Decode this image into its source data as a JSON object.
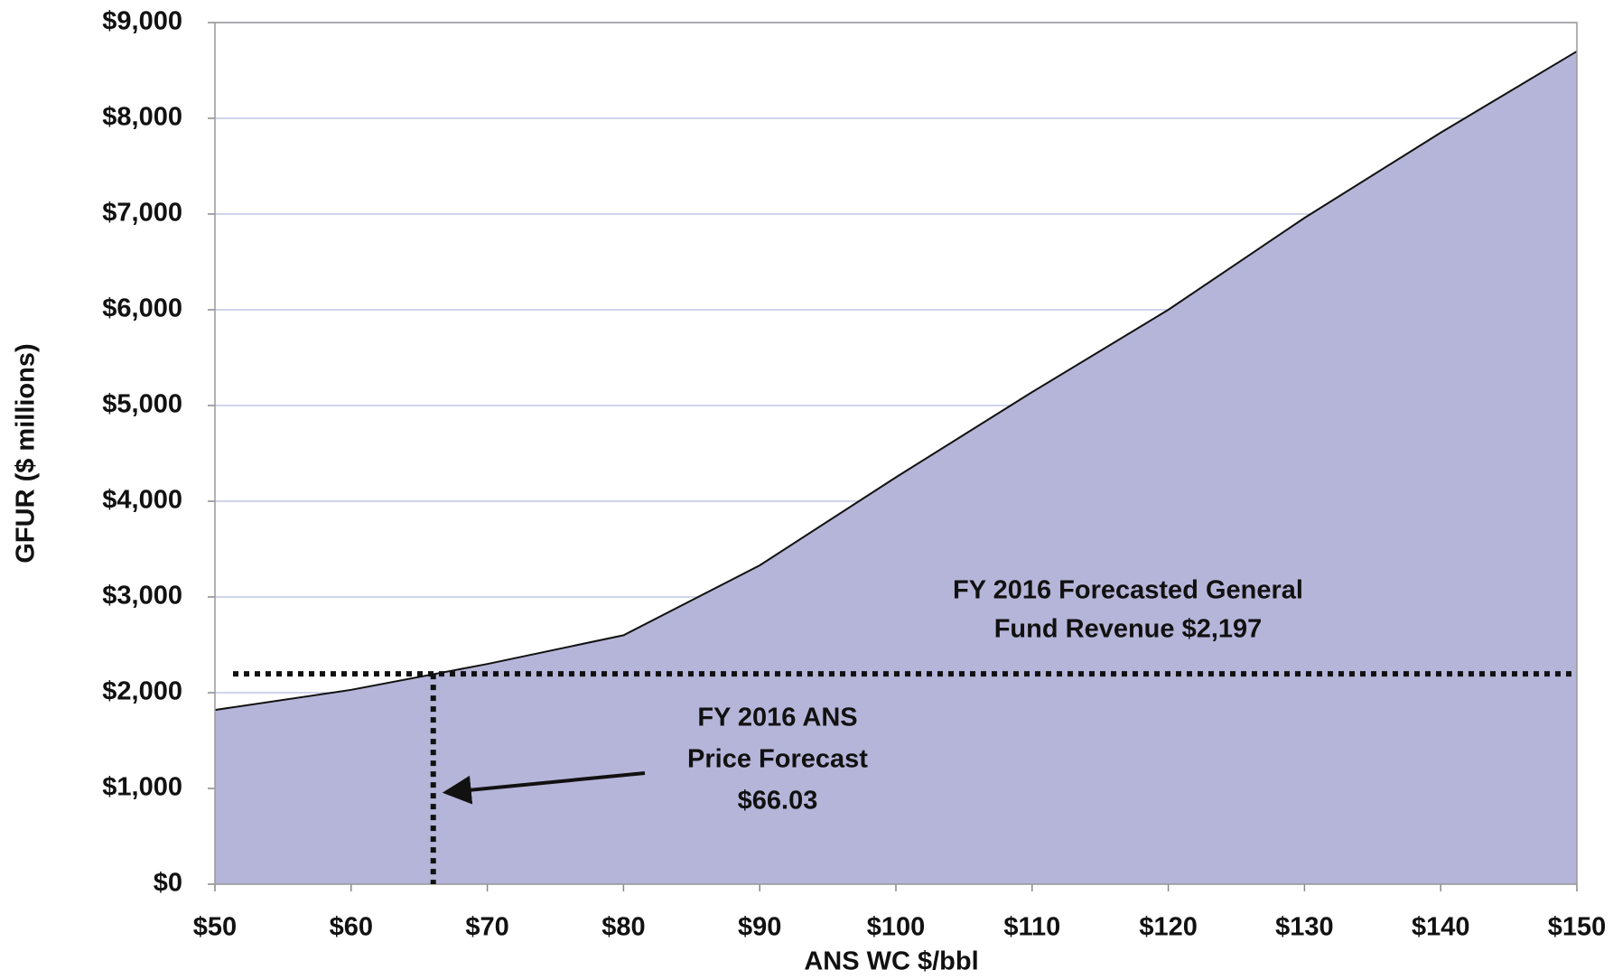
{
  "chart_data": {
    "type": "area",
    "x_label": "ANS WC $/bbl",
    "y_label": "GFUR ($ millions)",
    "x": [
      50,
      60,
      70,
      80,
      90,
      100,
      110,
      120,
      130,
      140,
      150
    ],
    "values": [
      1820,
      2030,
      2300,
      2600,
      3330,
      4250,
      5140,
      6000,
      6960,
      7850,
      8700
    ],
    "color": "#b5b5d9",
    "line_color": "#111111",
    "xlim": [
      50,
      150
    ],
    "ylim": [
      0,
      9000
    ],
    "xticks": [
      {
        "value": 50,
        "label": "$50"
      },
      {
        "value": 60,
        "label": "$60"
      },
      {
        "value": 70,
        "label": "$70"
      },
      {
        "value": 80,
        "label": "$80"
      },
      {
        "value": 90,
        "label": "$90"
      },
      {
        "value": 100,
        "label": "$100"
      },
      {
        "value": 110,
        "label": "$110"
      },
      {
        "value": 120,
        "label": "$120"
      },
      {
        "value": 130,
        "label": "$130"
      },
      {
        "value": 140,
        "label": "$140"
      },
      {
        "value": 150,
        "label": "$150"
      }
    ],
    "yticks": [
      {
        "value": 0,
        "label": "$0"
      },
      {
        "value": 1000,
        "label": "$1,000"
      },
      {
        "value": 2000,
        "label": "$2,000"
      },
      {
        "value": 3000,
        "label": "$3,000"
      },
      {
        "value": 4000,
        "label": "$4,000"
      },
      {
        "value": 5000,
        "label": "$5,000"
      },
      {
        "value": 6000,
        "label": "$6,000"
      },
      {
        "value": 7000,
        "label": "$7,000"
      },
      {
        "value": 8000,
        "label": "$8,000"
      },
      {
        "value": 9000,
        "label": "$9,000"
      }
    ],
    "grid": true,
    "reference_lines": {
      "y": 2197,
      "x": 66.03
    },
    "annotations": [
      {
        "lines": [
          "FY 2016 Forecasted General",
          "Fund Revenue  $2,197"
        ]
      },
      {
        "lines": [
          "FY 2016 ANS",
          "Price Forecast",
          "$66.03"
        ]
      }
    ]
  }
}
